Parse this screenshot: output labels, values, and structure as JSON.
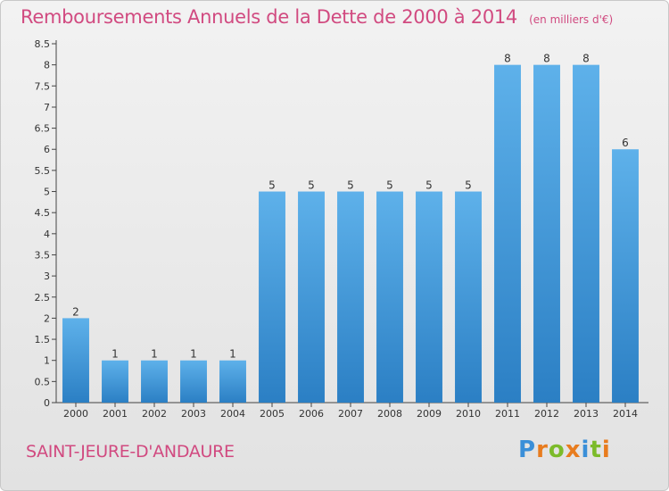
{
  "chart_data": {
    "type": "bar",
    "title": "Remboursements Annuels de la Dette de 2000 à 2014",
    "unit_note": "(en milliers d'€)",
    "categories": [
      "2000",
      "2001",
      "2002",
      "2003",
      "2004",
      "2005",
      "2006",
      "2007",
      "2008",
      "2009",
      "2010",
      "2011",
      "2012",
      "2013",
      "2014"
    ],
    "values": [
      2,
      1,
      1,
      1,
      1,
      5,
      5,
      5,
      5,
      5,
      5,
      8,
      8,
      8,
      6
    ],
    "data_labels": [
      "2",
      "1",
      "1",
      "1",
      "1",
      "5",
      "5",
      "5",
      "5",
      "5",
      "5",
      "8",
      "8",
      "8",
      "6"
    ],
    "y_ticks": [
      0,
      0.5,
      1,
      1.5,
      2,
      2.5,
      3,
      3.5,
      4,
      4.5,
      5,
      5.5,
      6,
      6.5,
      7,
      7.5,
      8,
      8.5
    ],
    "y_tick_labels": [
      "0",
      "0.5",
      "1",
      "1.5",
      "2",
      "2.5",
      "3",
      "3.5",
      "4",
      "4.5",
      "5",
      "5.5",
      "6",
      "6.5",
      "7",
      "7.5",
      "8",
      "8.5"
    ],
    "ylim": [
      0,
      8.5
    ],
    "grid": false,
    "legend": "none",
    "bar_color_top": "#5eb1ea",
    "bar_color_bottom": "#2b7fc4"
  },
  "footer": {
    "commune": "SAINT-JEURE-D'ANDAURE",
    "logo": "Proxiti"
  },
  "colors": {
    "title": "#d14a80",
    "axis": "#333333"
  }
}
